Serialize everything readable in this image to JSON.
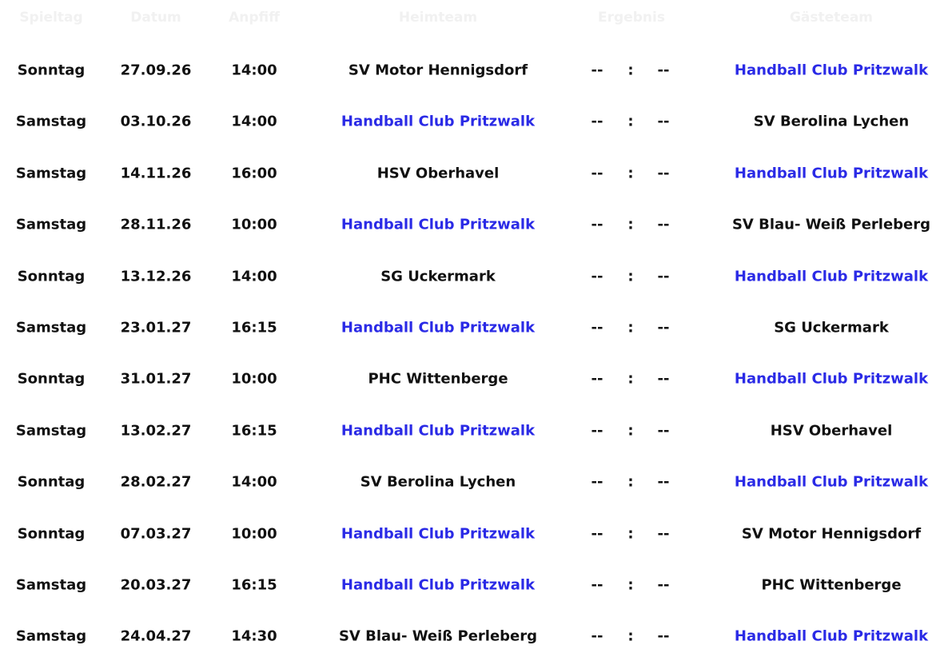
{
  "table": {
    "header": [
      "Spieltag",
      "Datum",
      "Anpfiff",
      "Heimteam",
      "Ergebnis",
      "Gästeteam"
    ],
    "rows": [
      [
        "Sonntag",
        "27.09.26",
        "14:00",
        "SV Motor Hennigsdorf",
        "--",
        ":",
        "--",
        "Handball Club Pritzwalk"
      ],
      [
        "Samstag",
        "03.10.26",
        "14:00",
        "Handball Club Pritzwalk",
        "--",
        ":",
        "--",
        "SV Berolina Lychen"
      ],
      [
        "Samstag",
        "14.11.26",
        "16:00",
        "HSV Oberhavel",
        "--",
        ":",
        "--",
        "Handball Club Pritzwalk"
      ],
      [
        "Samstag",
        "28.11.26",
        "10:00",
        "Handball Club Pritzwalk",
        "--",
        ":",
        "--",
        "SV Blau- Weiß Perleberg"
      ],
      [
        "Sonntag",
        "13.12.26",
        "14:00",
        "SG Uckermark",
        "--",
        ":",
        "--",
        "Handball Club Pritzwalk"
      ],
      [
        "Samstag",
        "23.01.27",
        "16:15",
        "Handball Club Pritzwalk",
        "--",
        ":",
        "--",
        "SG Uckermark"
      ],
      [
        "Sonntag",
        "31.01.27",
        "10:00",
        "PHC Wittenberge",
        "--",
        ":",
        "--",
        "Handball Club Pritzwalk"
      ],
      [
        "Samstag",
        "13.02.27",
        "16:15",
        "Handball Club Pritzwalk",
        "--",
        ":",
        "--",
        "HSV Oberhavel"
      ],
      [
        "Sonntag",
        "28.02.27",
        "14:00",
        "SV Berolina Lychen",
        "--",
        ":",
        "--",
        "Handball Club Pritzwalk"
      ],
      [
        "Sonntag",
        "07.03.27",
        "10:00",
        "Handball Club Pritzwalk",
        "--",
        ":",
        "--",
        "SV Motor Hennigsdorf"
      ],
      [
        "Samstag",
        "20.03.27",
        "16:15",
        "Handball Club Pritzwalk",
        "--",
        ":",
        "--",
        "PHC Wittenberge"
      ],
      [
        "Samstag",
        "24.04.27",
        "14:30",
        "SV Blau- Weiß Perleberg",
        "--",
        ":",
        "--",
        "Handball Club Pritzwalk"
      ]
    ]
  }
}
